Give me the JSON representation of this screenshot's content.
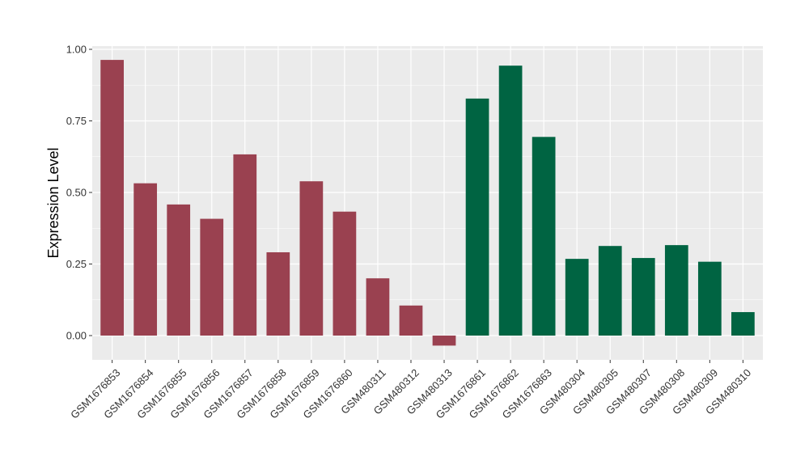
{
  "chart_data": {
    "type": "bar",
    "title": "",
    "xlabel": "",
    "ylabel": "Expression Level",
    "ylim": [
      -0.04,
      1.01
    ],
    "yticks": [
      "0.00",
      "0.25",
      "0.50",
      "0.75",
      "1.00"
    ],
    "grid": true,
    "legend": "none",
    "categories": [
      "GSM1676853",
      "GSM1676854",
      "GSM1676855",
      "GSM1676856",
      "GSM1676857",
      "GSM1676858",
      "GSM1676859",
      "GSM1676860",
      "GSM480311",
      "GSM480312",
      "GSM480313",
      "GSM1676861",
      "GSM1676862",
      "GSM1676863",
      "GSM480304",
      "GSM480305",
      "GSM480307",
      "GSM480308",
      "GSM480309",
      "GSM480310"
    ],
    "values": [
      0.963,
      0.532,
      0.458,
      0.408,
      0.633,
      0.291,
      0.539,
      0.433,
      0.2,
      0.105,
      -0.035,
      0.828,
      0.943,
      0.694,
      0.268,
      0.313,
      0.271,
      0.316,
      0.258,
      0.082
    ],
    "groups": [
      {
        "color": "#9A4150",
        "indices": [
          0,
          1,
          2,
          3,
          4,
          5,
          6,
          7,
          8,
          9,
          10
        ]
      },
      {
        "color": "#006442",
        "indices": [
          11,
          12,
          13,
          14,
          15,
          16,
          17,
          18,
          19
        ]
      }
    ],
    "panel_background": "#EBEBEB",
    "gridline_color": "#FFFFFF"
  }
}
